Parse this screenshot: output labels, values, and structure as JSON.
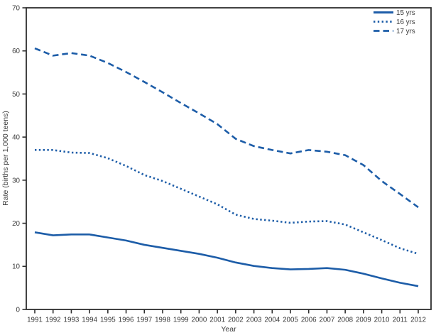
{
  "figure": {
    "background": "#ffffff"
  },
  "chart_data": {
    "type": "line",
    "title": "",
    "xlabel": "Year",
    "ylabel": "Rate (births per 1,000 teens)",
    "x": [
      1991,
      1992,
      1993,
      1994,
      1995,
      1996,
      1997,
      1998,
      1999,
      2000,
      2001,
      2002,
      2003,
      2004,
      2005,
      2006,
      2007,
      2008,
      2009,
      2010,
      2011,
      2012
    ],
    "series": [
      {
        "name": "15 yrs",
        "style": "solid",
        "values": [
          17.9,
          17.2,
          17.4,
          17.4,
          16.7,
          16.0,
          15.0,
          14.3,
          13.6,
          12.9,
          12.0,
          10.9,
          10.1,
          9.6,
          9.3,
          9.4,
          9.6,
          9.2,
          8.3,
          7.2,
          6.2,
          5.4
        ]
      },
      {
        "name": "16 yrs",
        "style": "dotted",
        "values": [
          37.0,
          37.0,
          36.4,
          36.3,
          35.1,
          33.3,
          31.2,
          29.8,
          28.0,
          26.2,
          24.4,
          22.0,
          21.0,
          20.6,
          20.1,
          20.4,
          20.5,
          19.7,
          17.9,
          16.1,
          14.2,
          12.9
        ]
      },
      {
        "name": "17 yrs",
        "style": "dashed",
        "values": [
          60.6,
          58.9,
          59.5,
          58.9,
          57.2,
          55.1,
          52.8,
          50.4,
          47.9,
          45.5,
          43.0,
          39.6,
          37.9,
          37.0,
          36.2,
          37.0,
          36.6,
          35.8,
          33.5,
          29.8,
          26.8,
          23.7
        ]
      }
    ],
    "ylim": [
      0,
      70
    ],
    "yticks": [
      0,
      10,
      20,
      30,
      40,
      50,
      60,
      70
    ],
    "grid": false,
    "legend_position": "top-right",
    "line_color": "#1d5da8",
    "axis_color": "#2e2e2e",
    "text_color": "#3a3a3a"
  }
}
